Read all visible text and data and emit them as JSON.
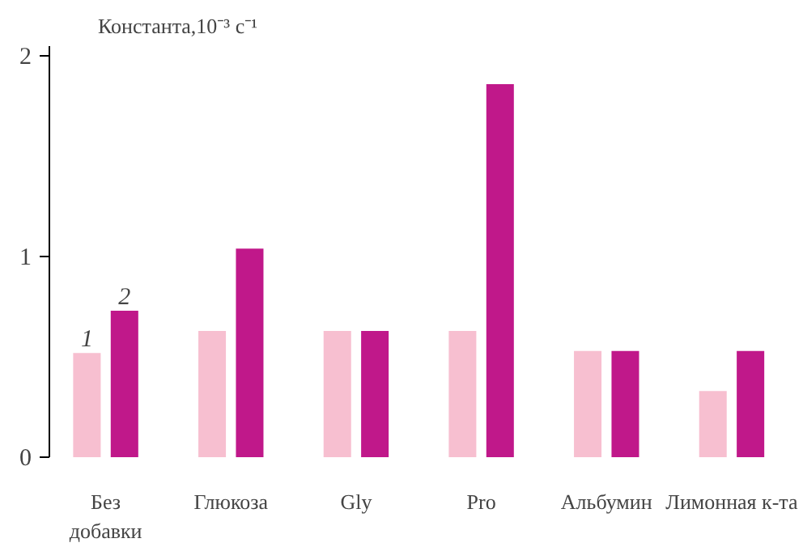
{
  "chart_data": {
    "type": "bar",
    "ylabel": "Константа,10⁻³ с⁻¹",
    "categories": [
      "Без\nдобавки",
      "Глюкоза",
      "Gly",
      "Pro",
      "Альбумин",
      "Лимонная к-та"
    ],
    "series": [
      {
        "name": "1",
        "color": "#f7bfd0",
        "values": [
          0.52,
          0.63,
          0.63,
          0.63,
          0.53,
          0.33
        ]
      },
      {
        "name": "2",
        "color": "#c0188a",
        "values": [
          0.73,
          1.04,
          0.63,
          1.86,
          0.53,
          0.53
        ]
      }
    ],
    "ylim": [
      0,
      2.05
    ],
    "yticks": [
      0,
      1,
      2
    ],
    "grid": false
  }
}
